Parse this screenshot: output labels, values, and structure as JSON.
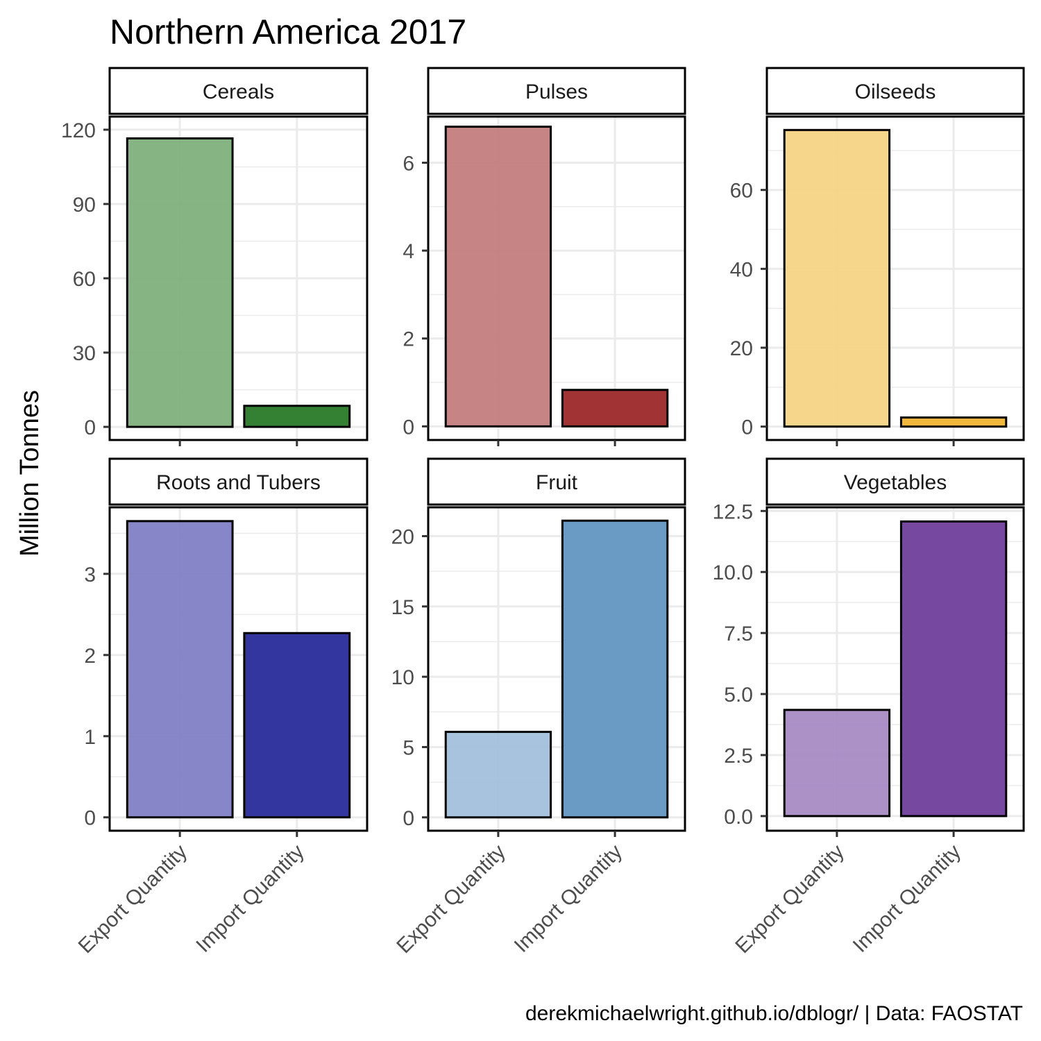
{
  "chart_data": {
    "type": "bar",
    "title": "Northern America 2017",
    "ylabel": "Million Tonnes",
    "caption": "derekmichaelwright.github.io/dblogr/ | Data: FAOSTAT",
    "categories": [
      "Export Quantity",
      "Import Quantity"
    ],
    "grid": true,
    "panels": [
      {
        "name": "Cereals",
        "values": [
          116.5,
          8.5
        ],
        "ylim": [
          -5.3,
          125.3
        ],
        "yticks": [
          0,
          30,
          60,
          90,
          120
        ],
        "ytick_labels": [
          "0",
          "30",
          "60",
          "90",
          "120"
        ],
        "colors": [
          "#7fb07c",
          "#348134"
        ]
      },
      {
        "name": "Pulses",
        "values": [
          6.82,
          0.83
        ],
        "ylim": [
          -0.31,
          7.05
        ],
        "yticks": [
          0,
          2,
          4,
          6
        ],
        "ytick_labels": [
          "0",
          "2",
          "4",
          "6"
        ],
        "colors": [
          "#c47d7d",
          "#a13334"
        ]
      },
      {
        "name": "Oilseeds",
        "values": [
          75.2,
          2.3
        ],
        "ylim": [
          -3.4,
          78.6
        ],
        "yticks": [
          0,
          20,
          40,
          60
        ],
        "ytick_labels": [
          "0",
          "20",
          "40",
          "60"
        ],
        "colors": [
          "#f5d484",
          "#f2b73d"
        ]
      },
      {
        "name": "Roots and Tubers",
        "values": [
          3.65,
          2.27
        ],
        "ylim": [
          -0.165,
          3.82
        ],
        "yticks": [
          0,
          1,
          2,
          3
        ],
        "ytick_labels": [
          "0",
          "1",
          "2",
          "3"
        ],
        "colors": [
          "#807fc5",
          "#33369e"
        ]
      },
      {
        "name": "Fruit",
        "values": [
          6.08,
          21.1
        ],
        "ylim": [
          -0.95,
          22.05
        ],
        "yticks": [
          0,
          5,
          10,
          15,
          20
        ],
        "ytick_labels": [
          "0",
          "5",
          "10",
          "15",
          "20"
        ],
        "colors": [
          "#a2c0db",
          "#6a9bc4"
        ]
      },
      {
        "name": "Vegetables",
        "values": [
          4.35,
          12.07
        ],
        "ylim": [
          -0.6,
          12.65
        ],
        "yticks": [
          0,
          2.5,
          5,
          7.5,
          10,
          12.5
        ],
        "ytick_labels": [
          "0.0",
          "2.5",
          "5.0",
          "7.5",
          "10.0",
          "12.5"
        ],
        "colors": [
          "#a78bc3",
          "#7648a0"
        ]
      }
    ]
  }
}
